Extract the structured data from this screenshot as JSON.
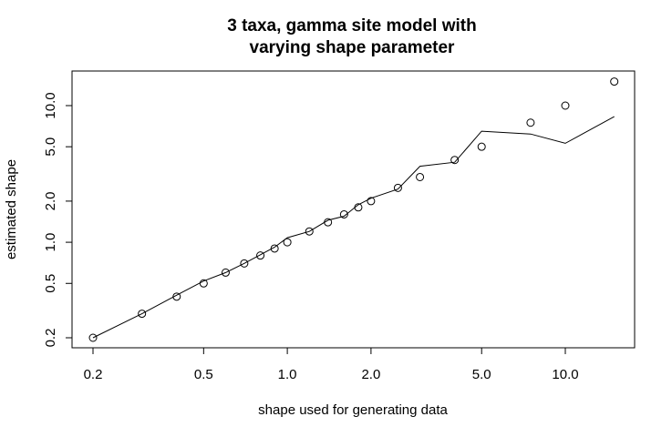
{
  "chart_data": {
    "type": "scatter",
    "title": "3 taxa, gamma site model with\nvarying shape parameter",
    "xlabel": "shape used for generating data",
    "ylabel": "estimated shape",
    "xscale": "log",
    "yscale": "log",
    "xlim": [
      0.19,
      15.5
    ],
    "ylim": [
      0.17,
      18.5
    ],
    "xticks": [
      0.2,
      0.5,
      1.0,
      2.0,
      5.0,
      10.0
    ],
    "xtick_labels": [
      "0.2",
      "0.5",
      "1.0",
      "2.0",
      "5.0",
      "10.0"
    ],
    "yticks": [
      0.2,
      0.5,
      1.0,
      2.0,
      5.0,
      10.0
    ],
    "ytick_labels": [
      "0.2",
      "0.5",
      "1.0",
      "2.0",
      "5.0",
      "10.0"
    ],
    "grid": false,
    "series": [
      {
        "style": "points",
        "x": [
          0.2,
          0.3,
          0.4,
          0.5,
          0.6,
          0.7,
          0.8,
          0.9,
          1.0,
          1.2,
          1.4,
          1.6,
          1.8,
          2.0,
          2.5,
          3.0,
          4.0,
          5.0,
          7.5,
          10.0,
          15.0
        ],
        "y": [
          0.2,
          0.3,
          0.4,
          0.5,
          0.6,
          0.7,
          0.8,
          0.9,
          1.0,
          1.2,
          1.4,
          1.6,
          1.8,
          2.0,
          2.5,
          3.0,
          4.0,
          5.0,
          7.5,
          10.0,
          15.0
        ]
      },
      {
        "style": "line",
        "x": [
          0.2,
          0.3,
          0.4,
          0.5,
          0.6,
          0.7,
          0.8,
          0.9,
          1.0,
          1.2,
          1.4,
          1.6,
          1.8,
          2.0,
          2.5,
          3.0,
          4.0,
          5.0,
          7.5,
          10.0,
          15.0
        ],
        "y": [
          0.2,
          0.3,
          0.41,
          0.52,
          0.6,
          0.7,
          0.81,
          0.92,
          1.08,
          1.2,
          1.45,
          1.55,
          1.88,
          2.1,
          2.45,
          3.6,
          3.85,
          6.5,
          6.2,
          5.3,
          8.3
        ]
      }
    ]
  }
}
